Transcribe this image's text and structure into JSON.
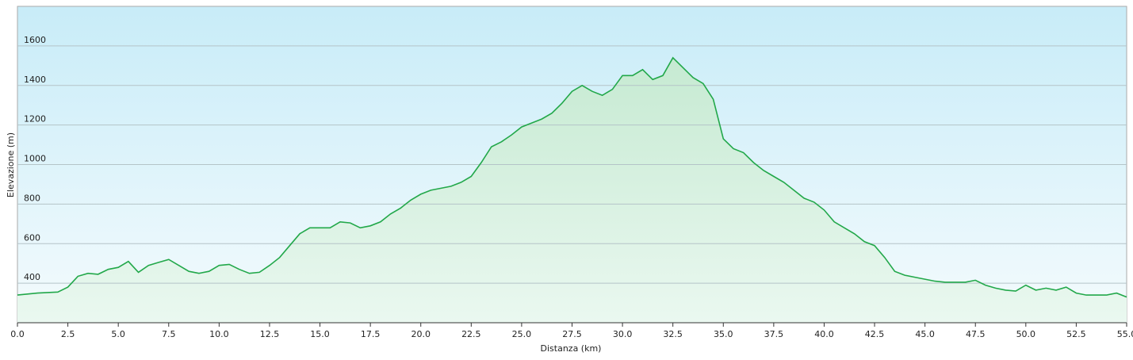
{
  "chart_data": {
    "type": "area",
    "x_label": "Distanza  (km)",
    "y_label": "Elevazione (m)",
    "color": "#22a84a",
    "grid": true,
    "xlim": [
      0,
      55
    ],
    "ylim": [
      200,
      1800
    ],
    "xticks": [
      {
        "value": 0,
        "label": "0.0"
      },
      2.5,
      {
        "value": 5,
        "label": "5.0"
      },
      7.5,
      {
        "value": 10,
        "label": "10.0"
      },
      12.5,
      {
        "value": 15,
        "label": "15.0"
      },
      17.5,
      {
        "value": 20,
        "label": "20.0"
      },
      22.5,
      {
        "value": 25,
        "label": "25.0"
      },
      27.5,
      {
        "value": 30,
        "label": "30.0"
      },
      32.5,
      {
        "value": 35,
        "label": "35.0"
      },
      37.5,
      {
        "value": 40,
        "label": "40.0"
      },
      42.5,
      {
        "value": 45,
        "label": "45.0"
      },
      47.5,
      {
        "value": 50,
        "label": "50.0"
      },
      52.5,
      {
        "value": 55,
        "label": "55.0"
      }
    ],
    "yticks": [
      400,
      600,
      800,
      1000,
      1200,
      1400,
      1600
    ],
    "x": [
      0,
      1,
      2,
      2.5,
      3,
      3.5,
      4,
      4.5,
      5,
      5.5,
      6,
      6.5,
      7,
      7.5,
      8,
      8.5,
      9,
      9.5,
      10,
      10.5,
      11,
      11.5,
      12,
      12.5,
      13,
      13.5,
      14,
      14.5,
      15,
      15.5,
      16,
      16.5,
      17,
      17.5,
      18,
      18.5,
      19,
      19.5,
      20,
      20.5,
      21,
      21.5,
      22,
      22.5,
      23,
      23.5,
      24,
      24.5,
      25,
      25.5,
      26,
      26.5,
      27,
      27.5,
      28,
      28.5,
      29,
      29.5,
      30,
      30.5,
      31,
      31.5,
      32,
      32.5,
      33,
      33.5,
      34,
      34.5,
      35,
      35.5,
      36,
      36.5,
      37,
      37.5,
      38,
      38.5,
      39,
      39.5,
      40,
      40.5,
      41,
      41.5,
      42,
      42.5,
      43,
      43.5,
      44,
      44.5,
      45,
      45.5,
      46,
      47,
      47.5,
      48,
      48.5,
      49,
      49.5,
      50,
      50.5,
      51,
      51.5,
      52,
      52.5,
      53,
      54,
      54.5,
      55
    ],
    "values": [
      340,
      350,
      355,
      380,
      435,
      450,
      445,
      470,
      480,
      510,
      455,
      490,
      505,
      520,
      490,
      460,
      450,
      460,
      490,
      495,
      470,
      450,
      455,
      490,
      530,
      590,
      650,
      680,
      680,
      680,
      710,
      705,
      680,
      690,
      710,
      750,
      780,
      820,
      850,
      870,
      880,
      890,
      910,
      940,
      1010,
      1090,
      1115,
      1150,
      1190,
      1210,
      1230,
      1260,
      1310,
      1370,
      1400,
      1370,
      1350,
      1380,
      1450,
      1450,
      1480,
      1430,
      1450,
      1540,
      1490,
      1440,
      1410,
      1330,
      1130,
      1080,
      1060,
      1010,
      970,
      940,
      910,
      870,
      830,
      810,
      770,
      710,
      680,
      650,
      610,
      590,
      530,
      460,
      440,
      430,
      420,
      410,
      405,
      405,
      415,
      390,
      375,
      365,
      360,
      390,
      365,
      375,
      365,
      380,
      350,
      340,
      340,
      350,
      330
    ]
  }
}
